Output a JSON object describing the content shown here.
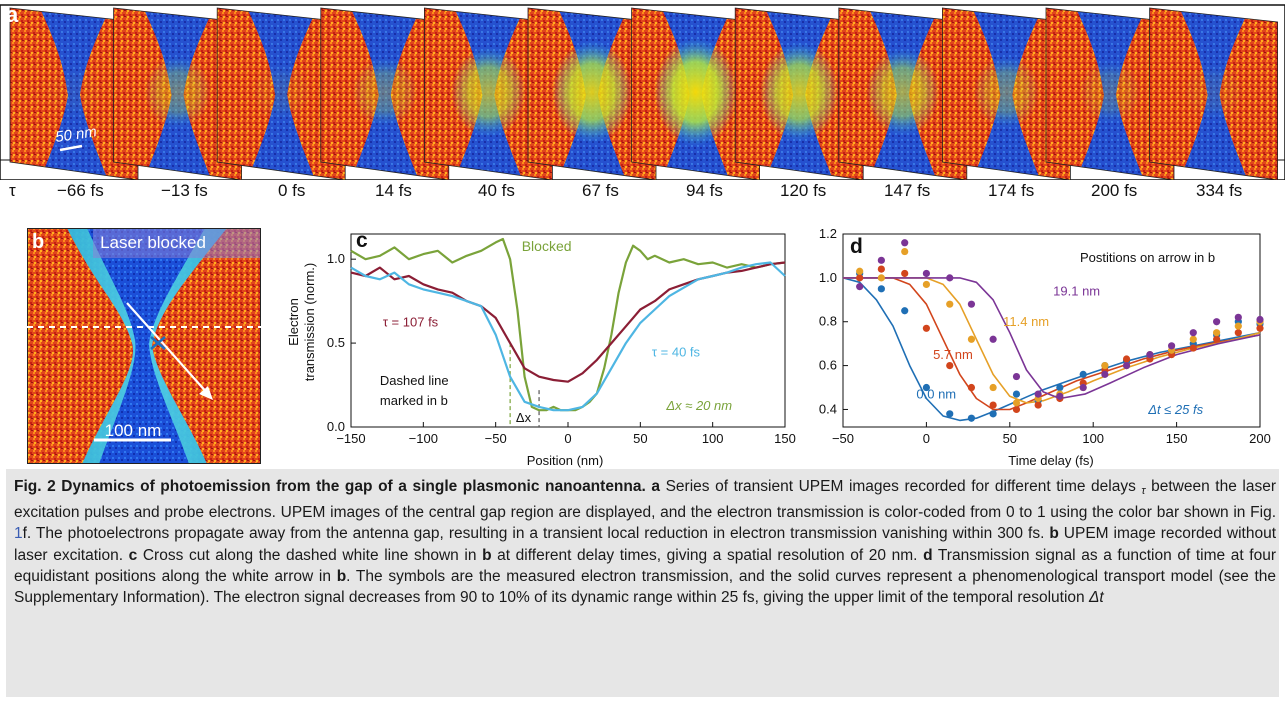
{
  "panel_a": {
    "label": "a",
    "scale_bar": "50 nm",
    "tau_symbol": "τ",
    "delays": [
      "−66 fs",
      "−13 fs",
      "0 fs",
      "14 fs",
      "40 fs",
      "67 fs",
      "94 fs",
      "120 fs",
      "147 fs",
      "174 fs",
      "200 fs",
      "334 fs"
    ],
    "gap_intensity": [
      0.05,
      0.35,
      0.1,
      0.3,
      0.65,
      0.85,
      0.95,
      0.8,
      0.6,
      0.35,
      0.2,
      0.1
    ]
  },
  "panel_b": {
    "label": "b",
    "title": "Laser blocked",
    "scale_bar": "100 nm"
  },
  "colors": {
    "blocked": "#7aa33a",
    "tau107": "#8b1e35",
    "tau40": "#4eb6e3",
    "p00": "#1f6fb5",
    "p57": "#d2451c",
    "p114": "#e6a027",
    "p191": "#7b3596"
  },
  "chart_data": [
    {
      "type": "line",
      "panel_label": "c",
      "xlabel": "Position (nm)",
      "ylabel": "Electron transmission (norm.)",
      "ylabel_lines": [
        "Electron",
        "transmission (norm.)"
      ],
      "xlim": [
        -150,
        150
      ],
      "ylim": [
        0,
        1.15
      ],
      "xticks": [
        -150,
        -100,
        -50,
        0,
        50,
        100,
        150
      ],
      "xtick_labels": [
        "−150",
        "−100",
        "−50",
        "0",
        "50",
        "100",
        "150"
      ],
      "yticks": [
        0,
        0.5,
        1.0
      ],
      "ytick_labels": [
        "0.0",
        "0.5",
        "1.0"
      ],
      "annotations": {
        "blocked": "Blocked",
        "tau107": "τ = 107 fs",
        "tau40": "τ = 40 fs",
        "dashed_1": "Dashed line",
        "dashed_2": "marked in b",
        "dx": "Δx",
        "dx_value": "Δx ≈ 20 nm"
      },
      "series": [
        {
          "key": "blocked",
          "x": [
            -150,
            -140,
            -130,
            -120,
            -110,
            -100,
            -90,
            -80,
            -70,
            -60,
            -50,
            -45,
            -40,
            -35,
            -30,
            -25,
            -20,
            -15,
            -10,
            -5,
            0,
            5,
            10,
            15,
            20,
            25,
            30,
            35,
            40,
            45,
            50,
            55,
            60,
            70,
            80,
            90,
            100,
            110,
            120,
            130,
            140,
            150
          ],
          "y": [
            1.05,
            1.0,
            1.02,
            1.07,
            1.0,
            1.03,
            1.05,
            0.98,
            1.02,
            1.05,
            1.1,
            1.12,
            1.0,
            0.7,
            0.3,
            0.12,
            0.1,
            0.1,
            0.12,
            0.1,
            0.1,
            0.1,
            0.12,
            0.15,
            0.2,
            0.35,
            0.55,
            0.8,
            0.98,
            1.08,
            1.05,
            1.0,
            1.02,
            0.98,
            1.0,
            0.97,
            0.98,
            0.95,
            0.97,
            0.95,
            0.97,
            0.98
          ]
        },
        {
          "key": "tau107",
          "x": [
            -150,
            -140,
            -130,
            -120,
            -110,
            -100,
            -90,
            -80,
            -70,
            -60,
            -50,
            -40,
            -30,
            -20,
            -10,
            0,
            10,
            20,
            30,
            40,
            50,
            60,
            70,
            80,
            90,
            100,
            110,
            120,
            130,
            140,
            150
          ],
          "y": [
            0.92,
            0.9,
            0.95,
            0.88,
            0.9,
            0.85,
            0.82,
            0.8,
            0.75,
            0.72,
            0.65,
            0.5,
            0.35,
            0.3,
            0.28,
            0.27,
            0.32,
            0.4,
            0.5,
            0.6,
            0.7,
            0.75,
            0.82,
            0.85,
            0.88,
            0.9,
            0.92,
            0.93,
            0.95,
            0.97,
            0.98
          ]
        },
        {
          "key": "tau40",
          "x": [
            -150,
            -140,
            -130,
            -120,
            -110,
            -100,
            -90,
            -80,
            -70,
            -60,
            -50,
            -40,
            -30,
            -20,
            -10,
            0,
            10,
            20,
            30,
            40,
            50,
            60,
            70,
            80,
            90,
            100,
            110,
            120,
            130,
            140,
            150
          ],
          "y": [
            0.95,
            0.9,
            0.88,
            0.92,
            0.85,
            0.82,
            0.8,
            0.78,
            0.75,
            0.72,
            0.55,
            0.3,
            0.15,
            0.12,
            0.1,
            0.1,
            0.12,
            0.2,
            0.35,
            0.5,
            0.62,
            0.7,
            0.78,
            0.83,
            0.88,
            0.9,
            0.92,
            0.95,
            0.97,
            0.98,
            0.9
          ]
        }
      ]
    },
    {
      "type": "scatter",
      "panel_label": "d",
      "title": "Postitions on arrow in b",
      "xlabel": "Time delay (fs)",
      "xlim": [
        -50,
        200
      ],
      "ylim": [
        0.32,
        1.2
      ],
      "xticks": [
        -50,
        0,
        50,
        100,
        150,
        200
      ],
      "xtick_labels": [
        "−50",
        "0",
        "50",
        "100",
        "150",
        "200"
      ],
      "yticks": [
        0.4,
        0.6,
        0.8,
        1.0,
        1.2
      ],
      "ytick_labels": [
        "0.4",
        "0.6",
        "0.8",
        "1.0",
        "1.2"
      ],
      "annotations": {
        "dt": "Δt ≤ 25 fs"
      },
      "series": [
        {
          "key": "p00",
          "name": "0.0 nm",
          "points": [
            [
              -40,
              1.02
            ],
            [
              -27,
              0.95
            ],
            [
              -13,
              0.85
            ],
            [
              0,
              0.5
            ],
            [
              14,
              0.38
            ],
            [
              27,
              0.36
            ],
            [
              40,
              0.38
            ],
            [
              54,
              0.47
            ],
            [
              67,
              0.44
            ],
            [
              80,
              0.5
            ],
            [
              94,
              0.56
            ],
            [
              107,
              0.6
            ],
            [
              120,
              0.62
            ],
            [
              134,
              0.64
            ],
            [
              147,
              0.66
            ],
            [
              160,
              0.7
            ],
            [
              174,
              0.74
            ],
            [
              187,
              0.8
            ],
            [
              200,
              0.79
            ]
          ],
          "curve": [
            [
              -50,
              1.0
            ],
            [
              -40,
              0.98
            ],
            [
              -30,
              0.9
            ],
            [
              -20,
              0.78
            ],
            [
              -10,
              0.6
            ],
            [
              0,
              0.45
            ],
            [
              10,
              0.37
            ],
            [
              20,
              0.35
            ],
            [
              30,
              0.36
            ],
            [
              40,
              0.39
            ],
            [
              55,
              0.44
            ],
            [
              70,
              0.49
            ],
            [
              85,
              0.53
            ],
            [
              100,
              0.57
            ],
            [
              120,
              0.62
            ],
            [
              140,
              0.66
            ],
            [
              160,
              0.69
            ],
            [
              180,
              0.72
            ],
            [
              200,
              0.75
            ]
          ]
        },
        {
          "key": "p57",
          "name": "5.7 nm",
          "points": [
            [
              -40,
              1.0
            ],
            [
              -27,
              1.04
            ],
            [
              -13,
              1.02
            ],
            [
              0,
              0.77
            ],
            [
              14,
              0.6
            ],
            [
              27,
              0.5
            ],
            [
              40,
              0.42
            ],
            [
              54,
              0.4
            ],
            [
              67,
              0.42
            ],
            [
              80,
              0.45
            ],
            [
              94,
              0.52
            ],
            [
              107,
              0.58
            ],
            [
              120,
              0.63
            ],
            [
              134,
              0.63
            ],
            [
              147,
              0.65
            ],
            [
              160,
              0.68
            ],
            [
              174,
              0.72
            ],
            [
              187,
              0.75
            ],
            [
              200,
              0.77
            ]
          ],
          "curve": [
            [
              -50,
              1.0
            ],
            [
              -20,
              1.0
            ],
            [
              -10,
              0.97
            ],
            [
              0,
              0.88
            ],
            [
              10,
              0.72
            ],
            [
              20,
              0.56
            ],
            [
              30,
              0.45
            ],
            [
              40,
              0.4
            ],
            [
              50,
              0.4
            ],
            [
              60,
              0.43
            ],
            [
              75,
              0.48
            ],
            [
              90,
              0.53
            ],
            [
              110,
              0.58
            ],
            [
              130,
              0.63
            ],
            [
              150,
              0.67
            ],
            [
              170,
              0.7
            ],
            [
              200,
              0.74
            ]
          ]
        },
        {
          "key": "p114",
          "name": "11.4 nm",
          "points": [
            [
              -40,
              1.03
            ],
            [
              -27,
              1.0
            ],
            [
              -13,
              1.12
            ],
            [
              0,
              0.97
            ],
            [
              14,
              0.88
            ],
            [
              27,
              0.72
            ],
            [
              40,
              0.5
            ],
            [
              54,
              0.43
            ],
            [
              67,
              0.45
            ],
            [
              80,
              0.47
            ],
            [
              94,
              0.5
            ],
            [
              107,
              0.6
            ],
            [
              120,
              0.6
            ],
            [
              134,
              0.65
            ],
            [
              147,
              0.67
            ],
            [
              160,
              0.72
            ],
            [
              174,
              0.75
            ],
            [
              187,
              0.78
            ],
            [
              200,
              0.8
            ]
          ],
          "curve": [
            [
              -50,
              1.0
            ],
            [
              0,
              1.0
            ],
            [
              10,
              0.97
            ],
            [
              20,
              0.88
            ],
            [
              30,
              0.72
            ],
            [
              40,
              0.56
            ],
            [
              50,
              0.46
            ],
            [
              60,
              0.43
            ],
            [
              70,
              0.44
            ],
            [
              85,
              0.48
            ],
            [
              100,
              0.53
            ],
            [
              120,
              0.59
            ],
            [
              140,
              0.64
            ],
            [
              160,
              0.68
            ],
            [
              180,
              0.71
            ],
            [
              200,
              0.75
            ]
          ]
        },
        {
          "key": "p191",
          "name": "19.1 nm",
          "points": [
            [
              -40,
              0.96
            ],
            [
              -27,
              1.08
            ],
            [
              -13,
              1.16
            ],
            [
              0,
              1.02
            ],
            [
              14,
              1.0
            ],
            [
              27,
              0.88
            ],
            [
              40,
              0.72
            ],
            [
              54,
              0.55
            ],
            [
              67,
              0.47
            ],
            [
              80,
              0.46
            ],
            [
              94,
              0.5
            ],
            [
              107,
              0.56
            ],
            [
              120,
              0.6
            ],
            [
              134,
              0.65
            ],
            [
              147,
              0.69
            ],
            [
              160,
              0.75
            ],
            [
              174,
              0.8
            ],
            [
              187,
              0.82
            ],
            [
              200,
              0.81
            ]
          ],
          "curve": [
            [
              -50,
              1.0
            ],
            [
              20,
              1.0
            ],
            [
              30,
              0.98
            ],
            [
              40,
              0.9
            ],
            [
              50,
              0.75
            ],
            [
              60,
              0.58
            ],
            [
              70,
              0.48
            ],
            [
              80,
              0.45
            ],
            [
              95,
              0.47
            ],
            [
              110,
              0.52
            ],
            [
              130,
              0.59
            ],
            [
              150,
              0.65
            ],
            [
              175,
              0.7
            ],
            [
              200,
              0.74
            ]
          ]
        }
      ]
    }
  ],
  "caption": {
    "title": "Fig. 2 Dynamics of photoemission from the gap of a single plasmonic nanoantenna.",
    "a_label": "a",
    "a_text_1": " Series of transient UPEM images recorded for different time delays ",
    "a_tau": "τ",
    "a_text_2": " between the laser excitation pulses and probe electrons. UPEM images of the central gap region are displayed, and the electron transmission is color-coded from 0 to 1 using the color bar shown in Fig. ",
    "a_ref": "1",
    "a_text_3": "f. The photoelectrons propagate away from the antenna gap, resulting in a transient local reduction in electron transmission vanishing within 300 fs. ",
    "b_label": "b",
    "b_text": " UPEM image recorded without laser excitation. ",
    "c_label": "c",
    "c_text_1": " Cross cut along the dashed white line shown in ",
    "c_b": "b",
    "c_text_2": " at different delay times, giving a spatial resolution of 20 nm. ",
    "d_label": "d",
    "d_text_1": " Transmission signal as a function of time at four equidistant positions along the white arrow in ",
    "d_b": "b",
    "d_text_2": ". The symbols are the measured electron transmission, and the solid curves represent a phenomenological transport model (see the Supplementary Information). The electron signal decreases from 90 to 10% of its dynamic range within 25 fs, giving the upper limit of the temporal resolution ",
    "d_dt": "Δt"
  }
}
